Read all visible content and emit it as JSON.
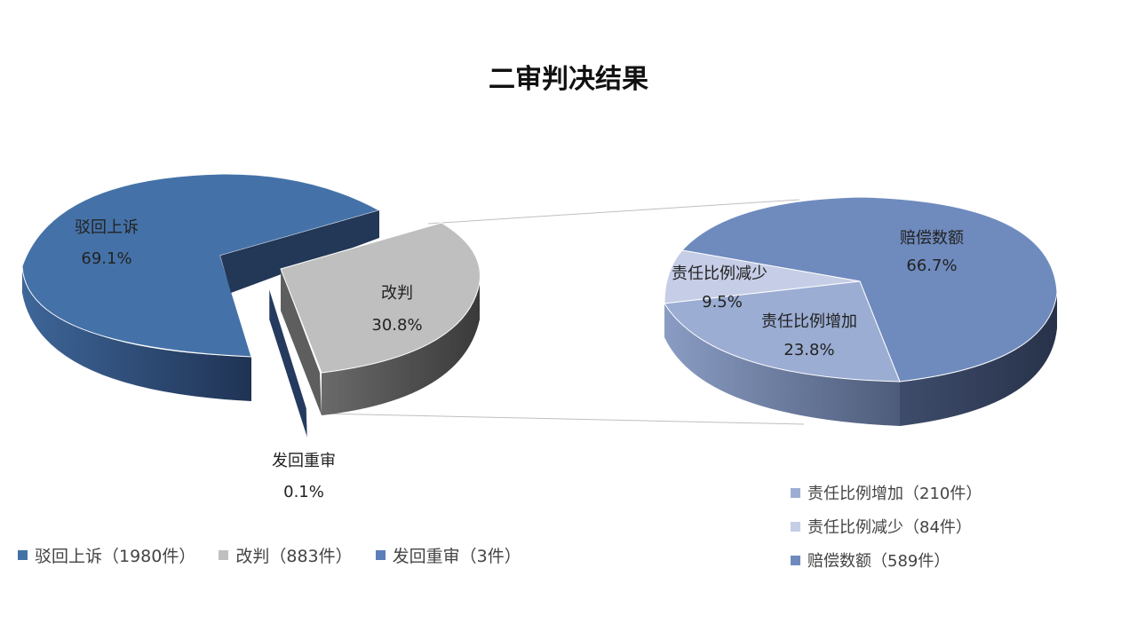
{
  "colors": {
    "main_blue": "#4472A8",
    "main_blue_dark": "#2A4570",
    "gray": "#BFBFBF",
    "gray_dark": "#4F4F4F",
    "sub_dark": "#6F8BBE",
    "sub_mid": "#9BADD3",
    "sub_light": "#C6CDE6",
    "sub_side": "#323E55",
    "connector": "#BFBFBF"
  },
  "chart_data": {
    "type": "bar-of-pie",
    "title": "二审判决结果",
    "primary": {
      "type": "pie",
      "slices": [
        {
          "name": "驳回上诉",
          "count_label": "驳回上诉（1980件）",
          "value": 1980,
          "percent": "69.1%"
        },
        {
          "name": "改判",
          "count_label": "改判（883件）",
          "value": 883,
          "percent": "30.8%"
        },
        {
          "name": "发回重审",
          "count_label": "发回重审（3件）",
          "value": 3,
          "percent": "0.1%"
        }
      ]
    },
    "secondary": {
      "type": "pie",
      "breakdown_of": "改判",
      "slices": [
        {
          "name": "赔偿数额",
          "count_label": "赔偿数额（589件）",
          "value": 589,
          "percent": "66.7%"
        },
        {
          "name": "责任比例增加",
          "count_label": "责任比例增加（210件）",
          "value": 210,
          "percent": "23.8%"
        },
        {
          "name": "责任比例减少",
          "count_label": "责任比例减少（84件）",
          "value": 84,
          "percent": "9.5%"
        }
      ]
    }
  }
}
